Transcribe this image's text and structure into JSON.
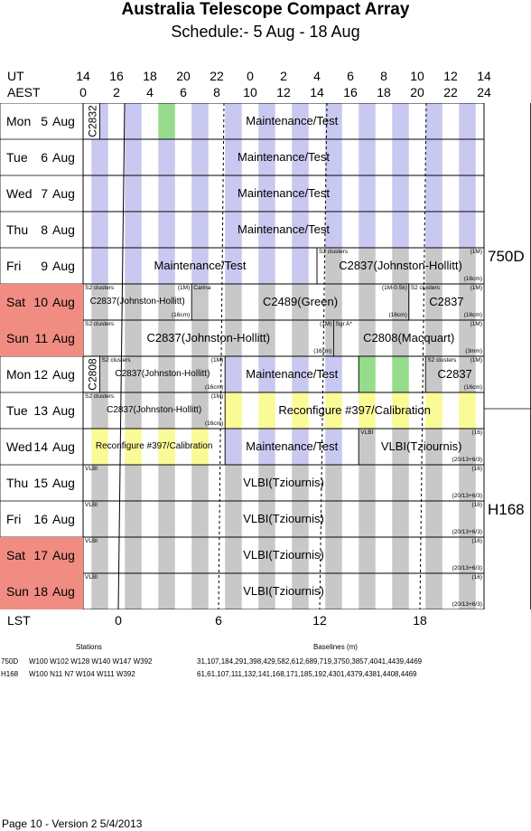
{
  "title": "Australia Telescope Compact Array",
  "subtitle": "Schedule:- 5  Aug - 18 Aug",
  "axis": {
    "ut_label": "UT",
    "aest_label": "AEST",
    "lst_label": "LST",
    "ut_ticks": [
      "14",
      "16",
      "18",
      "20",
      "22",
      "0",
      "2",
      "4",
      "6",
      "8",
      "10",
      "12",
      "14"
    ],
    "aest_ticks": [
      "0",
      "2",
      "4",
      "6",
      "8",
      "10",
      "12",
      "14",
      "16",
      "18",
      "20",
      "22",
      "24"
    ],
    "lst_ticks": [
      "0",
      "6",
      "12",
      "18"
    ]
  },
  "days": [
    {
      "dow": "Mon",
      "num": "5",
      "mon": "Aug",
      "weekend": false
    },
    {
      "dow": "Tue",
      "num": "6",
      "mon": "Aug",
      "weekend": false
    },
    {
      "dow": "Wed",
      "num": "7",
      "mon": "Aug",
      "weekend": false
    },
    {
      "dow": "Thu",
      "num": "8",
      "mon": "Aug",
      "weekend": false
    },
    {
      "dow": "Fri",
      "num": "9",
      "mon": "Aug",
      "weekend": false
    },
    {
      "dow": "Sat",
      "num": "10",
      "mon": "Aug",
      "weekend": true
    },
    {
      "dow": "Sun",
      "num": "11",
      "mon": "Aug",
      "weekend": true
    },
    {
      "dow": "Mon",
      "num": "12",
      "mon": "Aug",
      "weekend": false
    },
    {
      "dow": "Tue",
      "num": "13",
      "mon": "Aug",
      "weekend": false
    },
    {
      "dow": "Wed",
      "num": "14",
      "mon": "Aug",
      "weekend": false
    },
    {
      "dow": "Thu",
      "num": "15",
      "mon": "Aug",
      "weekend": false
    },
    {
      "dow": "Fri",
      "num": "16",
      "mon": "Aug",
      "weekend": false
    },
    {
      "dow": "Sat",
      "num": "17",
      "mon": "Aug",
      "weekend": true
    },
    {
      "dow": "Sun",
      "num": "18",
      "mon": "Aug",
      "weekend": true
    }
  ],
  "blocks": [
    {
      "row": 0,
      "start": 0,
      "end": 1,
      "label": "C2832",
      "vertical": true
    },
    {
      "row": 0,
      "start": 1,
      "end": 24,
      "label": "Maintenance/Test",
      "bg": "purple"
    },
    {
      "row": 1,
      "start": 0,
      "end": 24,
      "label": "Maintenance/Test",
      "bg": "purple"
    },
    {
      "row": 2,
      "start": 0,
      "end": 24,
      "label": "Maintenance/Test",
      "bg": "purple"
    },
    {
      "row": 3,
      "start": 0,
      "end": 24,
      "label": "Maintenance/Test",
      "bg": "purple"
    },
    {
      "row": 4,
      "start": 0,
      "end": 14,
      "label": "Maintenance/Test",
      "bg": "purple"
    },
    {
      "row": 4,
      "start": 14,
      "end": 24,
      "label": "C2837(Johnston-Hollitt)",
      "tl": "S2 clusters",
      "tr": "(1M)",
      "br": "(16cm)",
      "bg": "grey"
    },
    {
      "row": 5,
      "start": 0,
      "end": 6.5,
      "label": "C2837(Johnston-Hollitt)",
      "tl": "S2 clusters",
      "tr": "(1M)",
      "br": "(16cm)",
      "bg": "grey",
      "smalllabel": true
    },
    {
      "row": 5,
      "start": 6.5,
      "end": 19.5,
      "label": "C2489(Green)",
      "tl": "Carina",
      "tr": "(1M-0.5k)",
      "br": "(16cm)",
      "bg": "grey"
    },
    {
      "row": 5,
      "start": 19.5,
      "end": 24,
      "label": "C2837",
      "tl": "S2 clusters",
      "tr": "(1M)",
      "br": "(16cm)",
      "bg": "grey"
    },
    {
      "row": 6,
      "start": 0,
      "end": 15,
      "label": "C2837(Johnston-Hollitt)",
      "tl": "S2 clusters",
      "tr": "(1M)",
      "br": "(16cm)",
      "bg": "grey"
    },
    {
      "row": 6,
      "start": 15,
      "end": 24,
      "label": "C2808(Macquart)",
      "tl": "Sgr A*",
      "tr": "(1M)",
      "br": "(3mm)",
      "bg": "grey"
    },
    {
      "row": 7,
      "start": 0,
      "end": 1,
      "label": "C2808",
      "vertical": true
    },
    {
      "row": 7,
      "start": 1,
      "end": 8.5,
      "label": "C2837(Johnston-Hollitt)",
      "tl": "S2 clusters",
      "tr": "(1M)",
      "br": "(16cm)",
      "bg": "grey",
      "smalllabel": true
    },
    {
      "row": 7,
      "start": 8.5,
      "end": 16.5,
      "label": "Maintenance/Test",
      "bg": "purple"
    },
    {
      "row": 7,
      "start": 16.5,
      "end": 20.5,
      "label": "",
      "bg": "green"
    },
    {
      "row": 7,
      "start": 20.5,
      "end": 24,
      "label": "C2837",
      "tl": "S2 clusters",
      "tr": "(1M)",
      "br": "(16cm)",
      "bg": "grey"
    },
    {
      "row": 8,
      "start": 0,
      "end": 8.5,
      "label": "C2837(Johnston-Hollitt)",
      "tl": "S2 clusters",
      "tr": "(1M)",
      "br": "(16cm)",
      "bg": "grey",
      "smalllabel": true
    },
    {
      "row": 8,
      "start": 8.5,
      "end": 24,
      "label": "Reconfigure #397/Calibration",
      "bg": "yellow"
    },
    {
      "row": 9,
      "start": 0,
      "end": 8.5,
      "label": "Reconfigure #397/Calibration",
      "bg": "yellow",
      "smalllabel": true
    },
    {
      "row": 9,
      "start": 8.5,
      "end": 16.5,
      "label": "Maintenance/Test",
      "bg": "purple"
    },
    {
      "row": 9,
      "start": 16.5,
      "end": 24,
      "label": "VLBI(Tziournis)",
      "tl": "VLBI",
      "tr": "(16)",
      "br": "(20/13+6/3)",
      "bg": "grey"
    },
    {
      "row": 10,
      "start": 0,
      "end": 24,
      "label": "VLBI(Tziournis)",
      "tl": "VLBI",
      "tr": "(16)",
      "br": "(20/13+6/3)",
      "bg": "grey"
    },
    {
      "row": 11,
      "start": 0,
      "end": 24,
      "label": "VLBI(Tziournis)",
      "tl": "VLBI",
      "tr": "(16)",
      "br": "(20/13+6/3)",
      "bg": "grey"
    },
    {
      "row": 12,
      "start": 0,
      "end": 24,
      "label": "VLBI(Tziournis)",
      "tl": "VLBI",
      "tr": "(16)",
      "br": "(20/13+6/3)",
      "bg": "grey"
    },
    {
      "row": 13,
      "start": 0,
      "end": 24,
      "label": "VLBI(Tziournis)",
      "tl": "VLBI",
      "tr": "(16)",
      "br": "(20/13+6/3)",
      "bg": "grey"
    }
  ],
  "configs": [
    {
      "label": "750D"
    },
    {
      "label": "H168"
    }
  ],
  "colors": {
    "purple": "#c8c8f0",
    "grey": "#c8c8c8",
    "green": "#96dc8c",
    "yellow": "#fafa96",
    "weekend": "#f08c82"
  },
  "footer": {
    "stations_label": "Stations",
    "baselines_label": "Baselines (m)",
    "rows": [
      {
        "config": "750D",
        "stations": "W100  W102  W128  W140  W147  W392",
        "baselines": "31,107,184,291,398,429,582,612,689,719,3750,3857,4041,4439,4469"
      },
      {
        "config": "H168",
        "stations": "W100  N11  N7  W104  W111  W392",
        "baselines": "61,61,107,111,132,141,168,171,185,192,4301,4379,4381,4408,4469"
      }
    ],
    "page_info": "Page 10 - Version 2  5/4/2013"
  }
}
